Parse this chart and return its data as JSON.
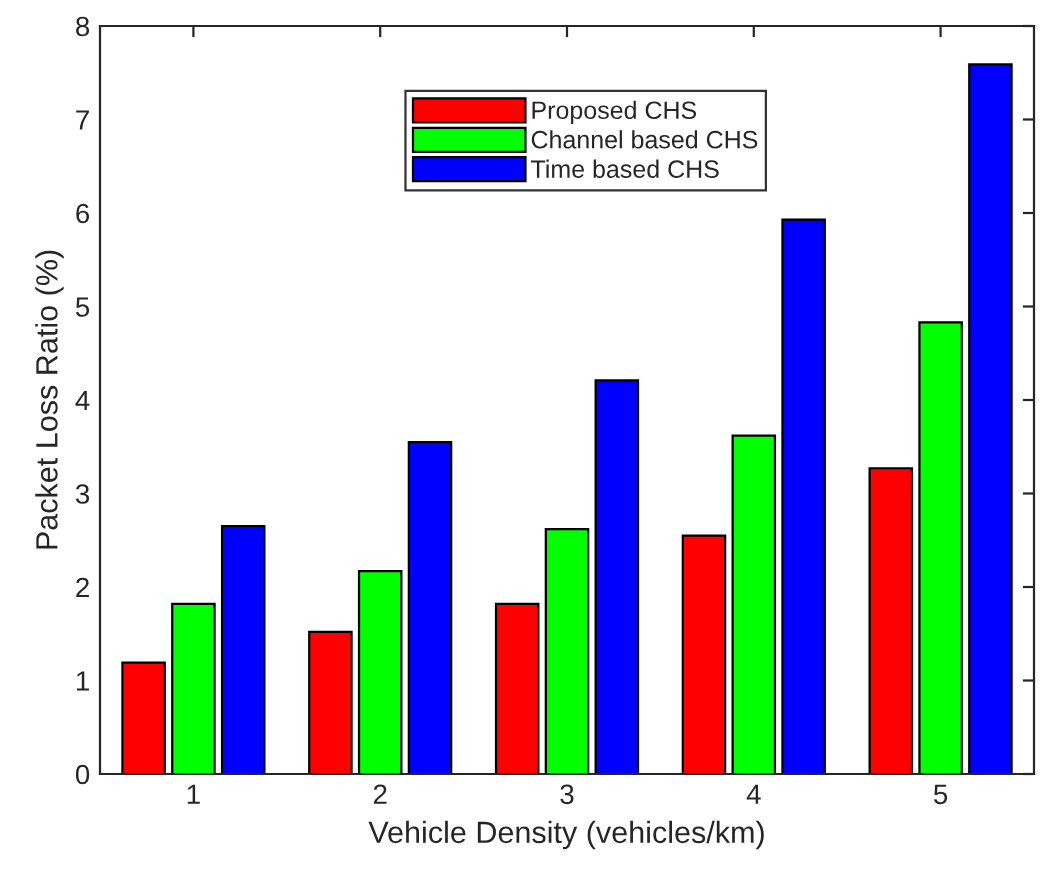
{
  "chart_data": {
    "type": "bar",
    "xlabel": "Vehicle Density (vehicles/km)",
    "ylabel": "Packet Loss Ratio (%)",
    "categories": [
      "1",
      "2",
      "3",
      "4",
      "5"
    ],
    "series": [
      {
        "name": "Proposed CHS",
        "color": "#ff0000",
        "values": [
          1.19,
          1.52,
          1.82,
          2.55,
          3.27
        ]
      },
      {
        "name": "Channel based CHS",
        "color": "#00ff00",
        "values": [
          1.82,
          2.17,
          2.62,
          3.62,
          4.83
        ]
      },
      {
        "name": "Time based CHS",
        "color": "#0000ff",
        "values": [
          2.65,
          3.55,
          4.21,
          5.93,
          7.59
        ]
      }
    ],
    "ylim": [
      0,
      8
    ],
    "yticks": [
      0,
      1,
      2,
      3,
      4,
      5,
      6,
      7,
      8
    ],
    "grid": false,
    "legend": "top"
  }
}
